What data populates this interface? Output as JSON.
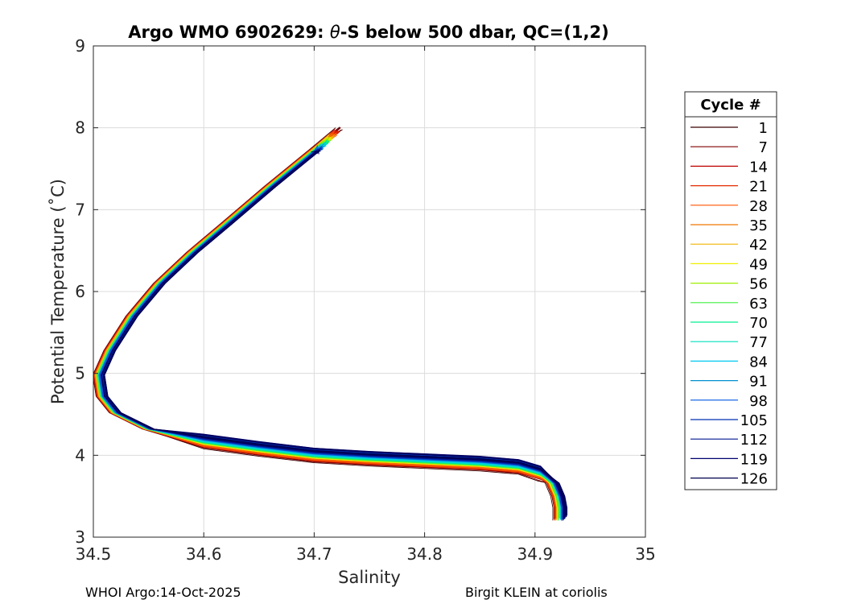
{
  "title_prefix": "Argo WMO 6902629: ",
  "title_theta": "θ",
  "title_suffix": "-S below 500 dbar,  QC=(1,2)",
  "footer_left": "WHOI Argo:14-Oct-2025",
  "footer_right": "Birgit KLEIN at coriolis",
  "colors": {
    "grid": "#dcdcdc",
    "axis": "#262626"
  },
  "chart_data": {
    "type": "line",
    "xlabel": "Salinity",
    "ylabel": "Potential Temperature (˚C)",
    "xlim": [
      34.5,
      35
    ],
    "ylim": [
      3,
      9
    ],
    "x_ticks": [
      "34.5",
      "34.6",
      "34.7",
      "34.8",
      "34.9",
      "35"
    ],
    "y_ticks": [
      "3",
      "4",
      "5",
      "6",
      "7",
      "8",
      "9"
    ],
    "grid": true,
    "legend_title": "Cycle #",
    "legend_position": "right-outside",
    "legend_entries": [
      "1",
      "7",
      "14",
      "21",
      "28",
      "35",
      "42",
      "49",
      "56",
      "63",
      "70",
      "77",
      "84",
      "91",
      "98",
      "105",
      "112",
      "119",
      "126"
    ],
    "legend_colors": [
      "#3a0000",
      "#800000",
      "#c00000",
      "#e62a00",
      "#ff5500",
      "#f07800",
      "#f0b400",
      "#f0f000",
      "#a0f000",
      "#40f040",
      "#00f090",
      "#00e0c0",
      "#00c8f0",
      "#0090d0",
      "#0058e0",
      "#0030b0",
      "#001890",
      "#000070",
      "#000050"
    ],
    "series_template": [
      [
        34.73,
        8.02
      ],
      [
        34.7,
        7.72
      ],
      [
        34.66,
        7.28
      ],
      [
        34.62,
        6.82
      ],
      [
        34.59,
        6.48
      ],
      [
        34.56,
        6.1
      ],
      [
        34.535,
        5.7
      ],
      [
        34.515,
        5.28
      ],
      [
        34.505,
        4.98
      ],
      [
        34.508,
        4.72
      ],
      [
        34.52,
        4.52
      ],
      [
        34.55,
        4.32
      ],
      [
        34.6,
        4.17
      ],
      [
        34.65,
        4.08
      ],
      [
        34.7,
        4.0
      ],
      [
        34.75,
        3.96
      ],
      [
        34.8,
        3.93
      ],
      [
        34.85,
        3.9
      ],
      [
        34.885,
        3.86
      ],
      [
        34.905,
        3.78
      ],
      [
        34.915,
        3.66
      ],
      [
        34.92,
        3.5
      ],
      [
        34.922,
        3.36
      ],
      [
        34.922,
        3.24
      ]
    ]
  }
}
